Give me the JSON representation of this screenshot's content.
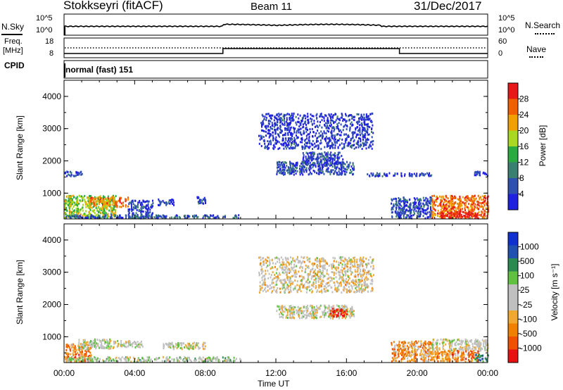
{
  "header": {
    "station": "Stokkseyri (fitACF)",
    "beam": "Beam 11",
    "date": "31/Dec/2017"
  },
  "summary": {
    "nsky_label": "N.Sky",
    "nsearch_label": "N.Search",
    "noise_ticks": [
      "10^5",
      "10^0"
    ],
    "freq_label_1": "Freq.",
    "freq_label_2": "[MHz]",
    "freq_ticks": [
      "18",
      "8"
    ],
    "nave_label": "Nave",
    "nave_ticks": [
      "60",
      "0"
    ],
    "cpid_label": "CPID",
    "cpid_value": "normal (fast) 151"
  },
  "colors": {
    "power_scale": [
      "#2020e0",
      "#3050b0",
      "#3a8070",
      "#2aaa40",
      "#a8d820",
      "#f0a000",
      "#f06000",
      "#e81818"
    ],
    "velocity_scale": [
      "#e81010",
      "#f05000",
      "#f08000",
      "#f0a830",
      "#c0c0c0",
      "#c0c0c0",
      "#60c040",
      "#2a8a50",
      "#2050b0",
      "#1030d0"
    ]
  },
  "chart_data": [
    {
      "type": "heatmap",
      "name": "power",
      "xlabel": "",
      "ylabel": "Slant Range [km]",
      "xlim": [
        0,
        24
      ],
      "ylim": [
        200,
        4500
      ],
      "y_ticks": [
        "1000",
        "2000",
        "3000",
        "4000"
      ],
      "colorbar_label": "Power [dB]",
      "colorbar_ticks": [
        "4",
        "8",
        "12",
        "16",
        "20",
        "24",
        "28"
      ],
      "regions": [
        {
          "t0": 0.0,
          "t1": 2.9,
          "r0": 250,
          "r1": 950,
          "level": 0.55
        },
        {
          "t0": 1.4,
          "t1": 3.6,
          "r0": 600,
          "r1": 900,
          "level": 0.75
        },
        {
          "t0": 0.0,
          "t1": 1.0,
          "r0": 1550,
          "r1": 1700,
          "level": 0.1
        },
        {
          "t0": 3.6,
          "t1": 5.0,
          "r0": 250,
          "r1": 800,
          "level": 0.15
        },
        {
          "t0": 5.3,
          "t1": 6.2,
          "r0": 650,
          "r1": 850,
          "level": 0.15
        },
        {
          "t0": 7.5,
          "t1": 8.0,
          "r0": 700,
          "r1": 950,
          "level": 0.15
        },
        {
          "t0": 0.0,
          "t1": 10.0,
          "r0": 250,
          "r1": 350,
          "level": 0.2
        },
        {
          "t0": 12.0,
          "t1": 16.4,
          "r0": 1600,
          "r1": 2000,
          "level": 0.15
        },
        {
          "t0": 13.5,
          "t1": 15.8,
          "r0": 1900,
          "r1": 2300,
          "level": 0.15
        },
        {
          "t0": 11.0,
          "t1": 17.5,
          "r0": 2400,
          "r1": 3500,
          "level": 0.1
        },
        {
          "t0": 17.0,
          "t1": 20.8,
          "r0": 1550,
          "r1": 1650,
          "level": 0.1
        },
        {
          "t0": 18.5,
          "t1": 20.8,
          "r0": 250,
          "r1": 900,
          "level": 0.15
        },
        {
          "t0": 20.8,
          "t1": 24.0,
          "r0": 250,
          "r1": 950,
          "level": 0.8
        },
        {
          "t0": 21.3,
          "t1": 23.4,
          "r0": 250,
          "r1": 450,
          "level": 1.0
        },
        {
          "t0": 23.2,
          "t1": 24.0,
          "r0": 1550,
          "r1": 1700,
          "level": 0.1
        }
      ]
    },
    {
      "type": "heatmap",
      "name": "velocity",
      "xlabel": "Time UT",
      "ylabel": "Slant Range [km]",
      "xlim": [
        0,
        24
      ],
      "ylim": [
        200,
        4500
      ],
      "x_ticks": [
        "00:00",
        "04:00",
        "08:00",
        "12:00",
        "16:00",
        "20:00",
        "00:00"
      ],
      "y_ticks": [
        "1000",
        "2000",
        "3000",
        "4000"
      ],
      "colorbar_label": "Velocity [m s⁻¹]",
      "colorbar_ticks": [
        "1000",
        "500",
        "100",
        "25",
        "-25",
        "-100",
        "-500",
        "-1000"
      ],
      "regions": [
        {
          "t0": 0.0,
          "t1": 1.5,
          "r0": 250,
          "r1": 800,
          "level": 0.25
        },
        {
          "t0": 0.8,
          "t1": 3.0,
          "r0": 650,
          "r1": 950,
          "level": 0.5
        },
        {
          "t0": 3.0,
          "t1": 4.5,
          "r0": 700,
          "r1": 900,
          "level": 0.5
        },
        {
          "t0": 0.0,
          "t1": 10.0,
          "r0": 250,
          "r1": 400,
          "level": 0.55
        },
        {
          "t0": 5.5,
          "t1": 8.0,
          "r0": 650,
          "r1": 850,
          "level": 0.5
        },
        {
          "t0": 12.0,
          "t1": 16.4,
          "r0": 1600,
          "r1": 2000,
          "level": 0.5
        },
        {
          "t0": 15.0,
          "t1": 16.0,
          "r0": 1650,
          "r1": 1900,
          "level": 0.05
        },
        {
          "t0": 11.0,
          "t1": 17.5,
          "r0": 2400,
          "r1": 3500,
          "level": 0.45
        },
        {
          "t0": 18.5,
          "t1": 20.8,
          "r0": 250,
          "r1": 900,
          "level": 0.3
        },
        {
          "t0": 20.8,
          "t1": 24.0,
          "r0": 600,
          "r1": 950,
          "level": 0.5
        },
        {
          "t0": 20.8,
          "t1": 23.5,
          "r0": 250,
          "r1": 600,
          "level": 0.25
        },
        {
          "t0": 23.2,
          "t1": 24.0,
          "r0": 250,
          "r1": 500,
          "level": 0.7
        }
      ]
    }
  ]
}
